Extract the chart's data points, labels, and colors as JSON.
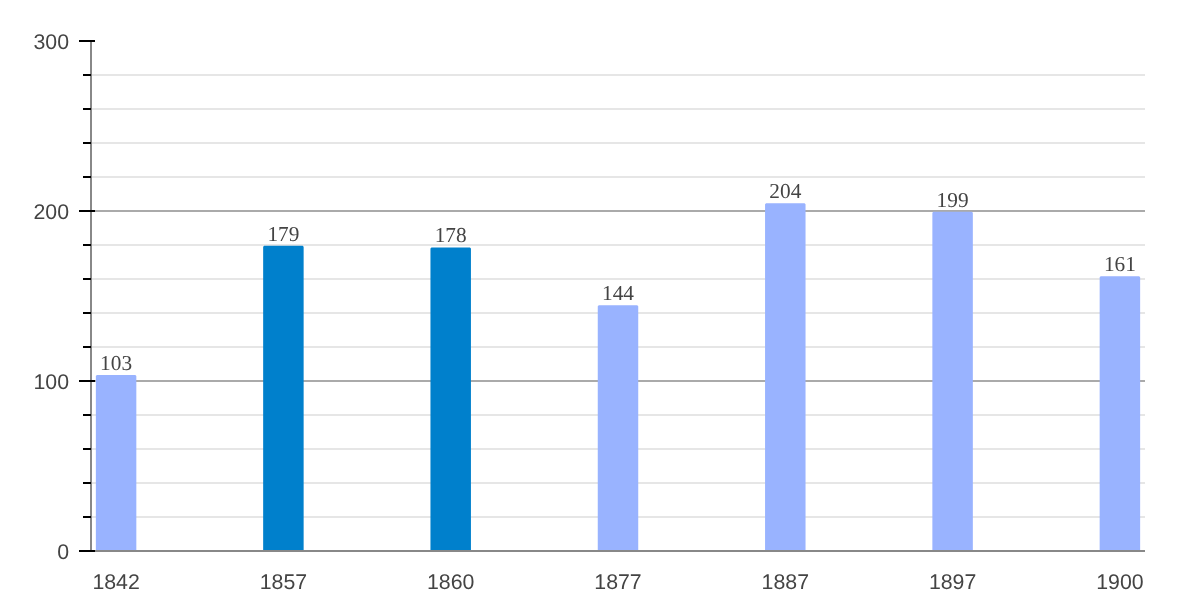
{
  "chart_data": {
    "type": "bar",
    "categories": [
      "1842",
      "1857",
      "1860",
      "1877",
      "1887",
      "1897",
      "1900"
    ],
    "values": [
      103,
      179,
      178,
      144,
      204,
      199,
      161
    ],
    "colors": [
      "#99b3ff",
      "#0080cc",
      "#0080cc",
      "#99b3ff",
      "#99b3ff",
      "#99b3ff",
      "#99b3ff"
    ],
    "ylim": [
      0,
      300
    ],
    "yticks": [
      0,
      100,
      200,
      300
    ],
    "grid": "y",
    "data_labels": true
  }
}
